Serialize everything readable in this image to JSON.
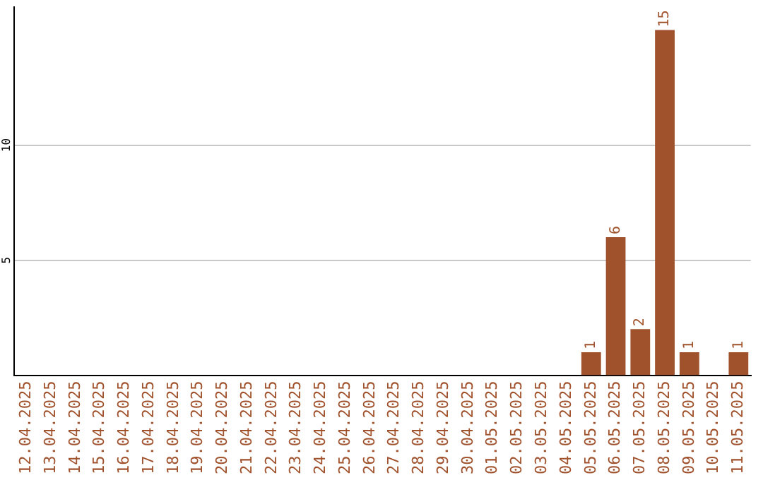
{
  "chart_data": {
    "type": "bar",
    "categories": [
      "12.04.2025",
      "13.04.2025",
      "14.04.2025",
      "15.04.2025",
      "16.04.2025",
      "17.04.2025",
      "18.04.2025",
      "19.04.2025",
      "20.04.2025",
      "21.04.2025",
      "22.04.2025",
      "23.04.2025",
      "24.04.2025",
      "25.04.2025",
      "26.04.2025",
      "27.04.2025",
      "28.04.2025",
      "29.04.2025",
      "30.04.2025",
      "01.05.2025",
      "02.05.2025",
      "03.05.2025",
      "04.05.2025",
      "05.05.2025",
      "06.05.2025",
      "07.05.2025",
      "08.05.2025",
      "09.05.2025",
      "10.05.2025",
      "11.05.2025"
    ],
    "values": [
      0,
      0,
      0,
      0,
      0,
      0,
      0,
      0,
      0,
      0,
      0,
      0,
      0,
      0,
      0,
      0,
      0,
      0,
      0,
      0,
      0,
      0,
      0,
      1,
      6,
      2,
      15,
      1,
      0,
      1
    ],
    "value_labels": [
      null,
      null,
      null,
      null,
      null,
      null,
      null,
      null,
      null,
      null,
      null,
      null,
      null,
      null,
      null,
      null,
      null,
      null,
      null,
      null,
      null,
      null,
      null,
      "1",
      "6",
      "2",
      "15",
      "1",
      null,
      "1"
    ],
    "color": "#a0522d",
    "ylim": [
      0,
      16
    ],
    "yticks": [
      5,
      10
    ],
    "grid": "y",
    "legend": false
  }
}
